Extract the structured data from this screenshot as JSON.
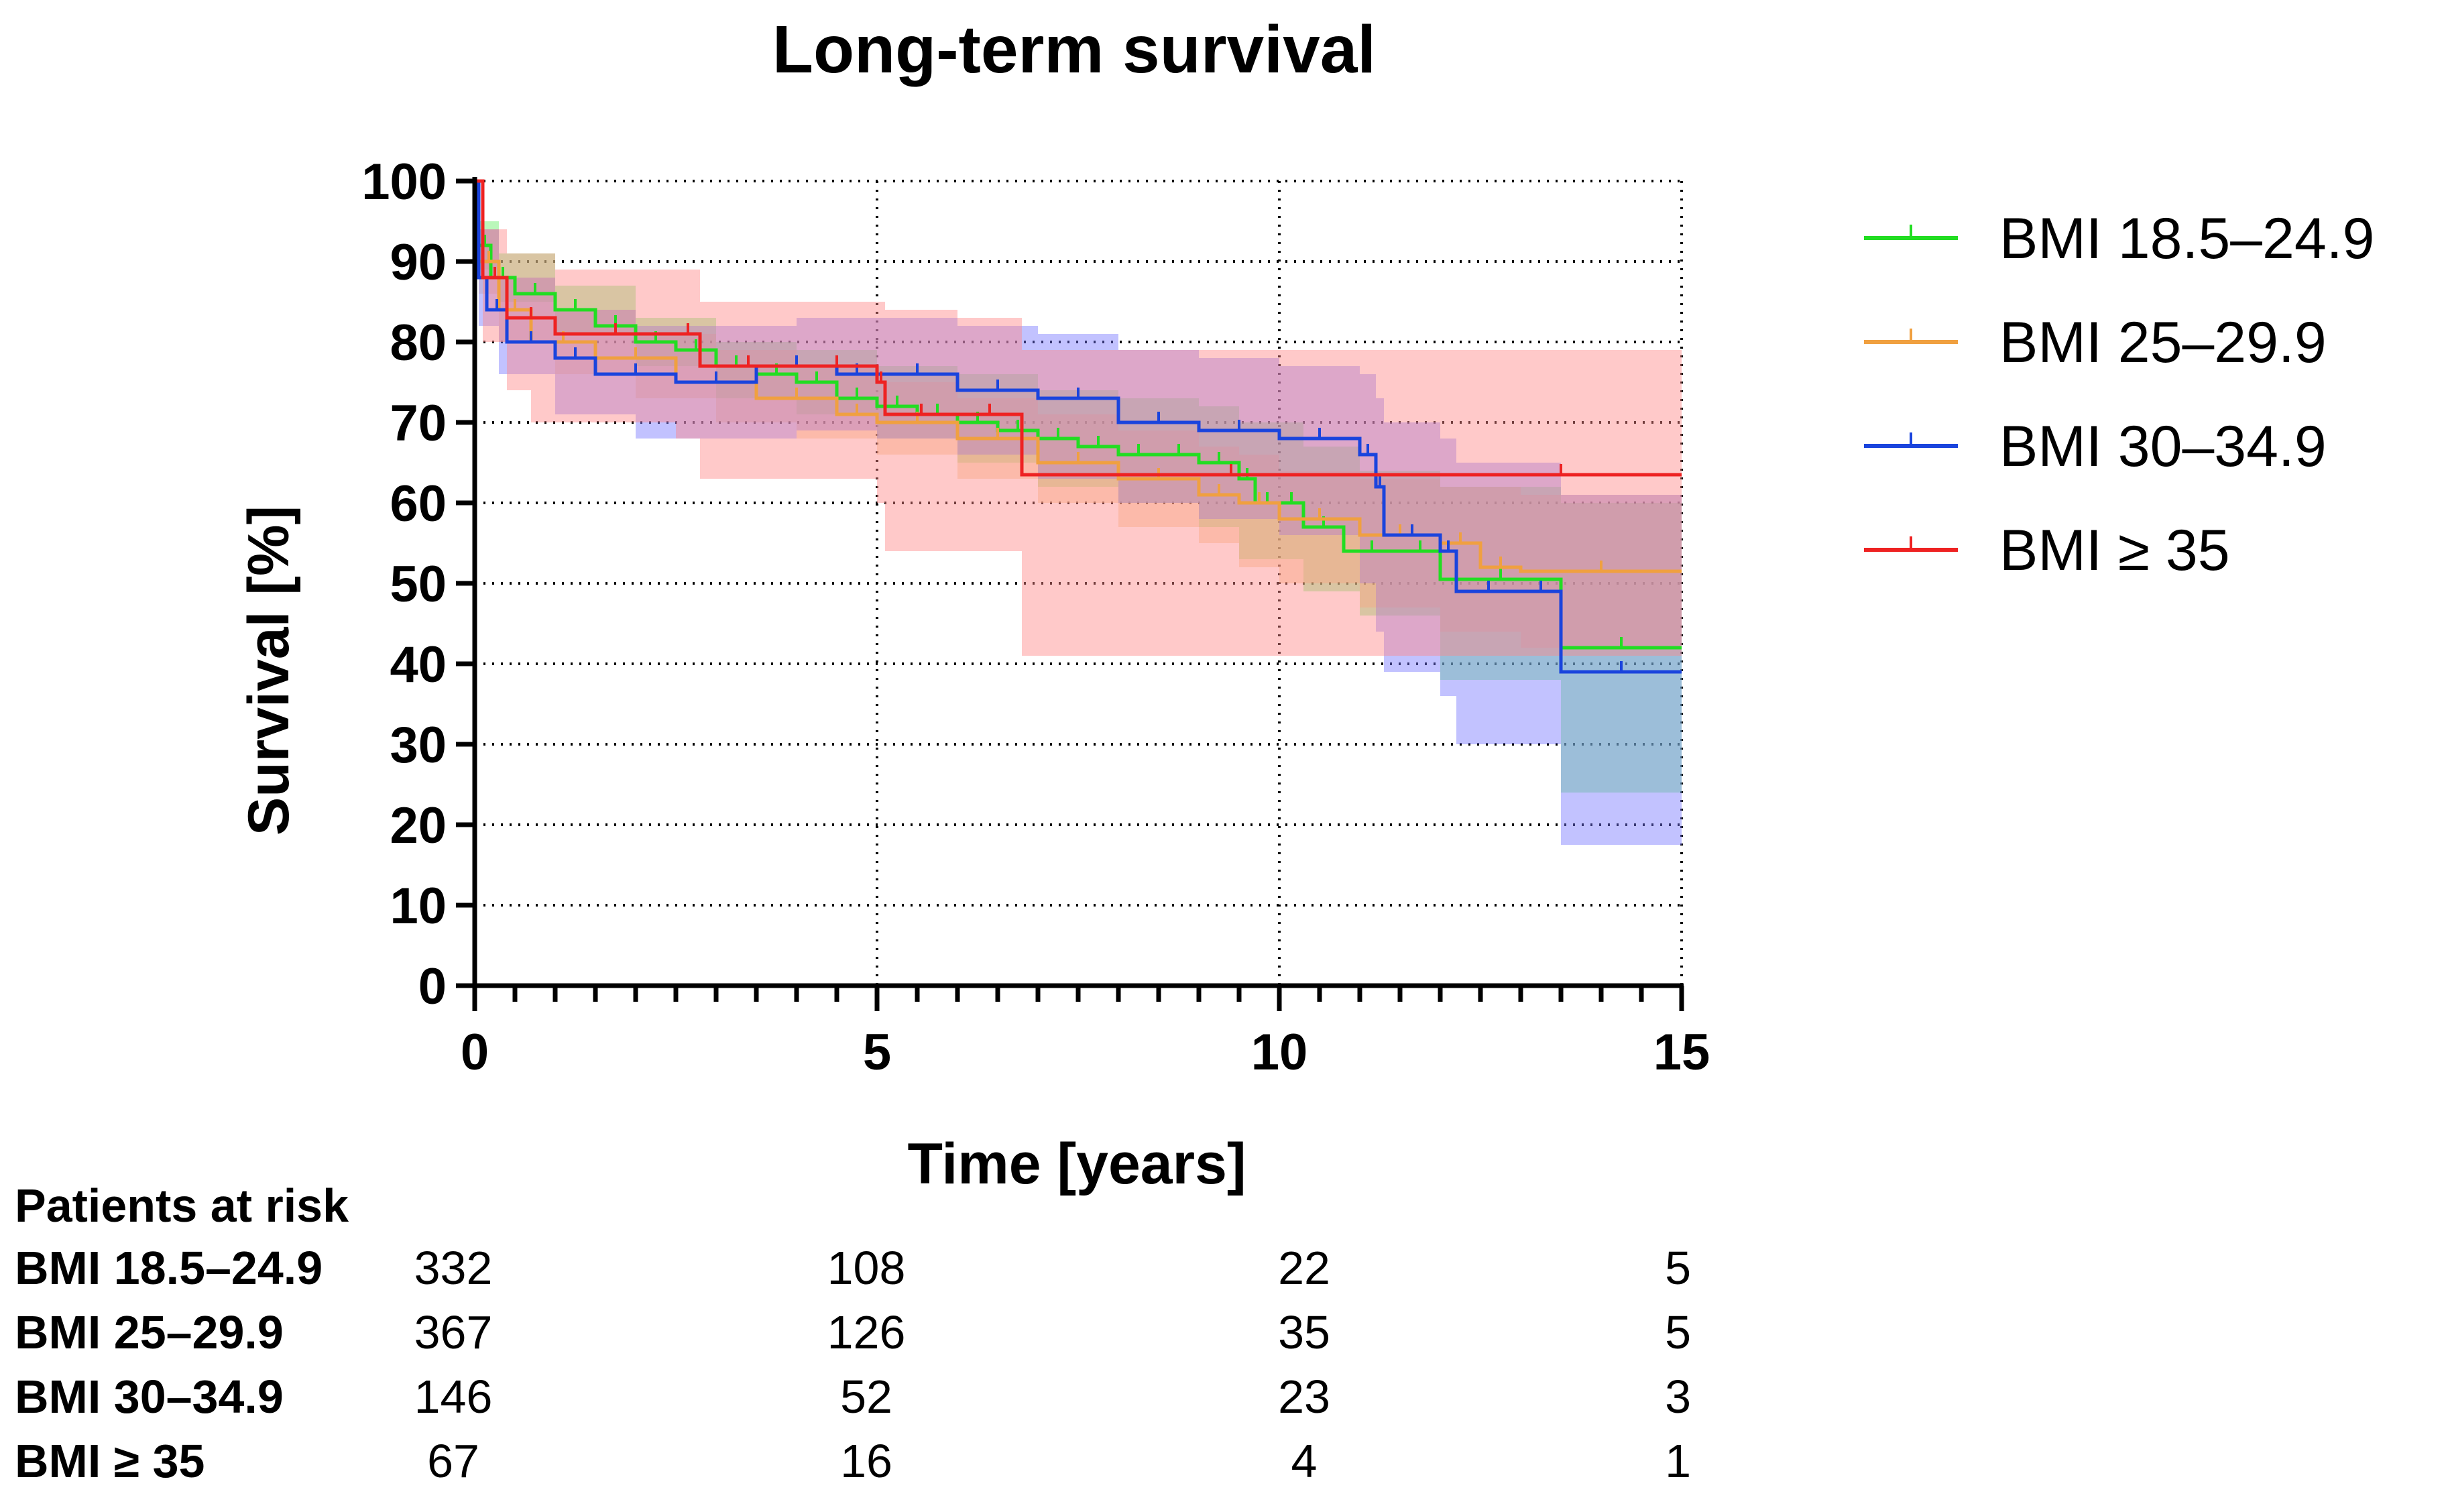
{
  "chart_data": {
    "type": "line",
    "subtype": "kaplan-meier",
    "title": "Long-term survival",
    "xlabel": "Time [years]",
    "ylabel": "Survival [%]",
    "xlim": [
      0,
      15
    ],
    "ylim": [
      0,
      100
    ],
    "x_ticks": [
      0,
      5,
      10,
      15
    ],
    "y_ticks": [
      0,
      10,
      20,
      30,
      40,
      50,
      60,
      70,
      80,
      90,
      100
    ],
    "grid": "dotted",
    "legend_position": "right",
    "series": [
      {
        "name": "BMI 18.5–24.9",
        "color": "#22dd22",
        "band_color": "#66ee66",
        "steps": [
          [
            0,
            100
          ],
          [
            0.05,
            92
          ],
          [
            0.2,
            88
          ],
          [
            0.5,
            86
          ],
          [
            1,
            84
          ],
          [
            1.5,
            82
          ],
          [
            2,
            80
          ],
          [
            2.5,
            79
          ],
          [
            3,
            77
          ],
          [
            3.5,
            76
          ],
          [
            4,
            75
          ],
          [
            4.5,
            73
          ],
          [
            5,
            72
          ],
          [
            5.5,
            71
          ],
          [
            6,
            70
          ],
          [
            6.5,
            69
          ],
          [
            7,
            68
          ],
          [
            7.5,
            67
          ],
          [
            8,
            66
          ],
          [
            8.5,
            66
          ],
          [
            9,
            65
          ],
          [
            9.5,
            63
          ],
          [
            9.7,
            60
          ],
          [
            10,
            60
          ],
          [
            10.3,
            57
          ],
          [
            10.8,
            54
          ],
          [
            11.5,
            54
          ],
          [
            12,
            50.5
          ],
          [
            13.5,
            42
          ],
          [
            15,
            42
          ]
        ],
        "lower": [
          [
            0,
            100
          ],
          [
            0.05,
            89
          ],
          [
            0.3,
            85
          ],
          [
            1,
            81
          ],
          [
            2,
            77
          ],
          [
            3,
            73
          ],
          [
            4,
            71
          ],
          [
            5,
            68
          ],
          [
            6,
            65
          ],
          [
            7,
            62
          ],
          [
            8,
            60
          ],
          [
            9,
            57
          ],
          [
            9.5,
            53
          ],
          [
            10.3,
            49
          ],
          [
            11,
            46
          ],
          [
            12,
            38
          ],
          [
            13.5,
            24
          ],
          [
            15,
            24
          ]
        ],
        "upper": [
          [
            0,
            100
          ],
          [
            0.05,
            95
          ],
          [
            0.3,
            91
          ],
          [
            1,
            87
          ],
          [
            2,
            83
          ],
          [
            3,
            80
          ],
          [
            4,
            79
          ],
          [
            5,
            77
          ],
          [
            6,
            76
          ],
          [
            7,
            74
          ],
          [
            8,
            73
          ],
          [
            9,
            72
          ],
          [
            9.5,
            70
          ],
          [
            10.3,
            67
          ],
          [
            11,
            64
          ],
          [
            12,
            62
          ],
          [
            13.5,
            60
          ],
          [
            15,
            60
          ]
        ]
      },
      {
        "name": "BMI 25–29.9",
        "color": "#f0a040",
        "band_color": "#f4c080",
        "steps": [
          [
            0,
            100
          ],
          [
            0.05,
            90
          ],
          [
            0.3,
            84
          ],
          [
            0.7,
            80
          ],
          [
            1.5,
            78
          ],
          [
            2.5,
            75
          ],
          [
            3.5,
            73
          ],
          [
            4.5,
            71
          ],
          [
            5,
            70
          ],
          [
            6,
            68
          ],
          [
            7,
            65
          ],
          [
            8,
            63
          ],
          [
            9,
            61
          ],
          [
            9.5,
            60
          ],
          [
            10,
            58
          ],
          [
            11,
            56
          ],
          [
            12,
            55
          ],
          [
            12.5,
            52
          ],
          [
            13,
            51.5
          ],
          [
            15,
            51.5
          ]
        ],
        "lower": [
          [
            0,
            100
          ],
          [
            0.05,
            86
          ],
          [
            0.3,
            80
          ],
          [
            1,
            76
          ],
          [
            2,
            73
          ],
          [
            3,
            70
          ],
          [
            4,
            68
          ],
          [
            5,
            66
          ],
          [
            6,
            63
          ],
          [
            7,
            60
          ],
          [
            8,
            57
          ],
          [
            9,
            55
          ],
          [
            9.5,
            52
          ],
          [
            10,
            50
          ],
          [
            11,
            47
          ],
          [
            12,
            44
          ],
          [
            13,
            42
          ],
          [
            15,
            42
          ]
        ],
        "upper": [
          [
            0,
            100
          ],
          [
            0.05,
            94
          ],
          [
            0.3,
            88
          ],
          [
            1,
            84
          ],
          [
            2,
            81
          ],
          [
            3,
            79
          ],
          [
            4,
            77
          ],
          [
            5,
            75
          ],
          [
            6,
            73
          ],
          [
            7,
            71
          ],
          [
            8,
            69
          ],
          [
            9,
            67
          ],
          [
            9.5,
            66
          ],
          [
            10,
            64
          ],
          [
            11,
            63
          ],
          [
            12,
            62
          ],
          [
            13,
            61
          ],
          [
            15,
            61
          ]
        ]
      },
      {
        "name": "BMI 30–34.9",
        "color": "#1a44dd",
        "band_color": "#7777ff",
        "steps": [
          [
            0,
            100
          ],
          [
            0.05,
            88
          ],
          [
            0.15,
            84
          ],
          [
            0.4,
            80
          ],
          [
            1,
            78
          ],
          [
            1.5,
            76
          ],
          [
            2.5,
            75
          ],
          [
            3.5,
            77
          ],
          [
            4.5,
            76
          ],
          [
            5,
            76
          ],
          [
            6,
            74
          ],
          [
            7,
            73
          ],
          [
            8,
            70
          ],
          [
            9,
            69
          ],
          [
            10,
            68
          ],
          [
            11,
            66
          ],
          [
            11.2,
            62
          ],
          [
            11.3,
            56
          ],
          [
            12,
            54
          ],
          [
            12.2,
            49
          ],
          [
            13,
            49
          ],
          [
            13.5,
            39
          ],
          [
            15,
            39
          ]
        ],
        "lower": [
          [
            0,
            100
          ],
          [
            0.05,
            82
          ],
          [
            0.3,
            76
          ],
          [
            1,
            71
          ],
          [
            2,
            68
          ],
          [
            3,
            68
          ],
          [
            4,
            69
          ],
          [
            5,
            68
          ],
          [
            6,
            66
          ],
          [
            7,
            63
          ],
          [
            8,
            60
          ],
          [
            9,
            58
          ],
          [
            10,
            56
          ],
          [
            11,
            50
          ],
          [
            11.2,
            44
          ],
          [
            11.3,
            39
          ],
          [
            12,
            36
          ],
          [
            12.2,
            30
          ],
          [
            13,
            30
          ],
          [
            13.5,
            17.5
          ],
          [
            15,
            17.5
          ]
        ],
        "upper": [
          [
            0,
            100
          ],
          [
            0.05,
            94
          ],
          [
            0.3,
            88
          ],
          [
            1,
            84
          ],
          [
            2,
            82
          ],
          [
            3,
            82
          ],
          [
            4,
            83
          ],
          [
            5,
            83
          ],
          [
            6,
            82
          ],
          [
            7,
            81
          ],
          [
            8,
            79
          ],
          [
            9,
            78
          ],
          [
            10,
            77
          ],
          [
            11,
            76
          ],
          [
            11.2,
            73
          ],
          [
            11.3,
            70
          ],
          [
            12,
            68
          ],
          [
            12.2,
            65
          ],
          [
            13,
            65
          ],
          [
            13.5,
            61
          ],
          [
            15,
            61
          ]
        ]
      },
      {
        "name": "BMI ≥ 35",
        "color": "#ee2222",
        "band_color": "#ff8888",
        "steps": [
          [
            0,
            100
          ],
          [
            0.1,
            88
          ],
          [
            0.4,
            83
          ],
          [
            1,
            81
          ],
          [
            2.5,
            81
          ],
          [
            2.8,
            77
          ],
          [
            4,
            77
          ],
          [
            5,
            75
          ],
          [
            5.1,
            71
          ],
          [
            6,
            71
          ],
          [
            6.8,
            63.5
          ],
          [
            12,
            63.5
          ],
          [
            15,
            63.5
          ]
        ],
        "lower": [
          [
            0,
            100
          ],
          [
            0.1,
            80
          ],
          [
            0.4,
            74
          ],
          [
            0.7,
            70
          ],
          [
            2.5,
            68
          ],
          [
            2.8,
            63
          ],
          [
            4,
            63
          ],
          [
            5,
            60
          ],
          [
            5.1,
            54
          ],
          [
            6,
            54
          ],
          [
            6.8,
            41
          ],
          [
            12,
            41
          ],
          [
            15,
            41
          ]
        ],
        "upper": [
          [
            0,
            100
          ],
          [
            0.1,
            94
          ],
          [
            0.4,
            91
          ],
          [
            1,
            89
          ],
          [
            2.5,
            89
          ],
          [
            2.8,
            85
          ],
          [
            4,
            85
          ],
          [
            5,
            85
          ],
          [
            5.1,
            84
          ],
          [
            6,
            83
          ],
          [
            6.8,
            79
          ],
          [
            12,
            79
          ],
          [
            15,
            79
          ]
        ]
      }
    ]
  },
  "risk_table": {
    "header": "Patients at risk",
    "times": [
      0,
      5,
      10,
      15
    ],
    "rows": [
      {
        "label": "BMI 18.5–24.9",
        "values": [
          "332",
          "108",
          "22",
          "5"
        ]
      },
      {
        "label": "BMI 25–29.9",
        "values": [
          "367",
          "126",
          "35",
          "5"
        ]
      },
      {
        "label": "BMI 30–34.9",
        "values": [
          "146",
          "52",
          "23",
          "3"
        ]
      },
      {
        "label": "BMI ≥ 35",
        "values": [
          "67",
          "16",
          "4",
          "1"
        ]
      }
    ]
  }
}
